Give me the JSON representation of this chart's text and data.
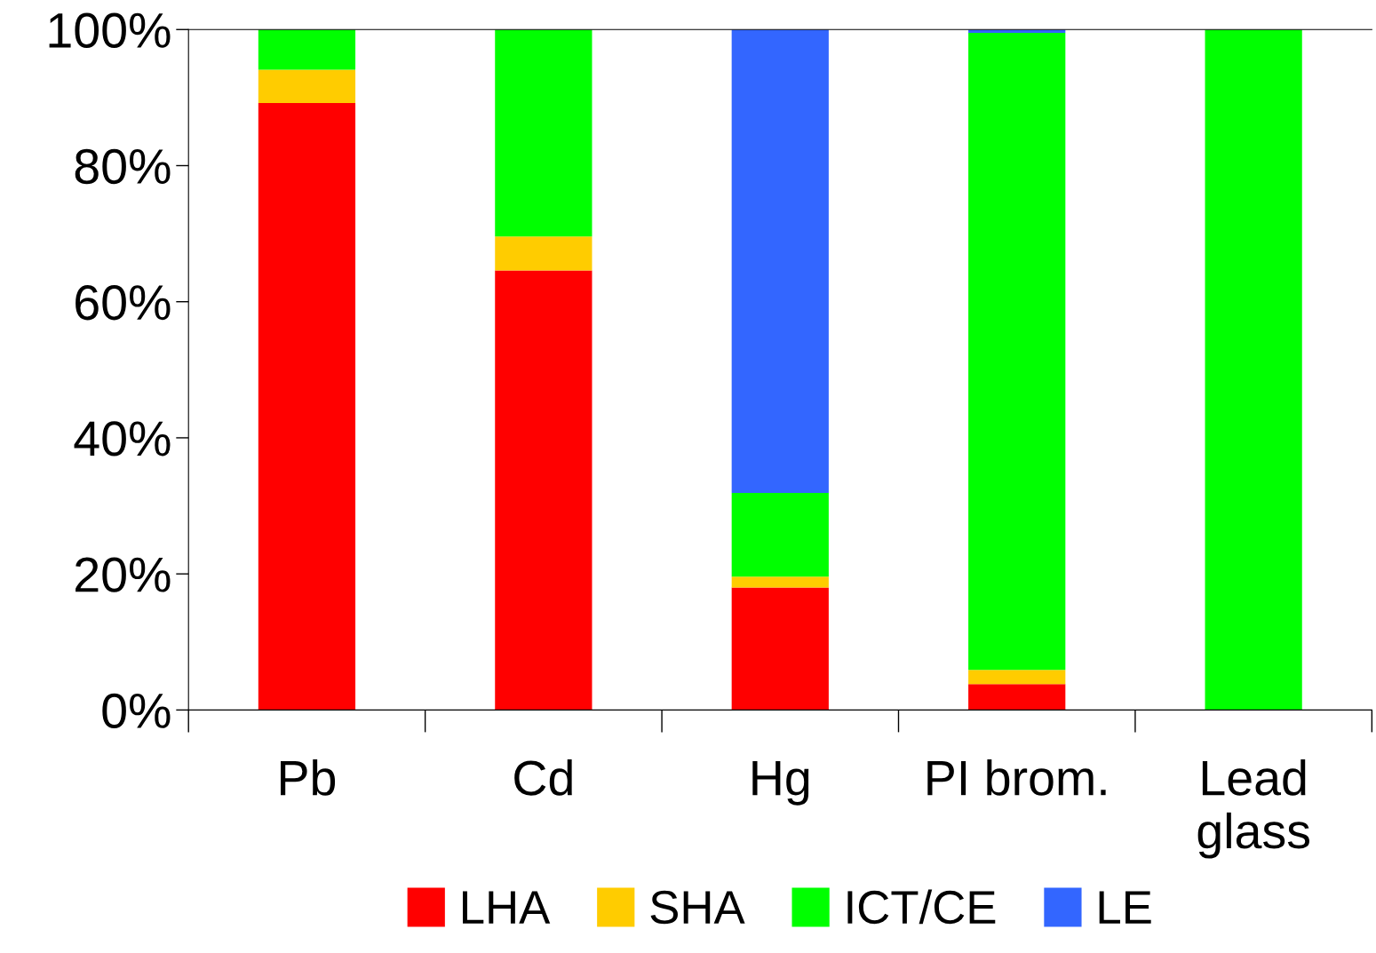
{
  "chart_data": {
    "type": "bar",
    "stacked": true,
    "categories": [
      "Pb",
      "Cd",
      "Hg",
      "PI brom.",
      "Lead\nglass"
    ],
    "series": [
      {
        "name": "LHA",
        "color": "#ff0000",
        "values": [
          89.2,
          64.6,
          18.0,
          3.8,
          0
        ]
      },
      {
        "name": "SHA",
        "color": "#ffcc00",
        "values": [
          4.9,
          5.0,
          1.6,
          2.1,
          0
        ]
      },
      {
        "name": "ICT/CE",
        "color": "#00ff00",
        "values": [
          5.9,
          30.4,
          12.3,
          93.6,
          100
        ]
      },
      {
        "name": "LE",
        "color": "#3366ff",
        "values": [
          0,
          0,
          68.1,
          0.5,
          0
        ]
      }
    ],
    "ylim": [
      0,
      100
    ],
    "yticks": [
      {
        "value": 0,
        "label": "0%"
      },
      {
        "value": 20,
        "label": "20%"
      },
      {
        "value": 40,
        "label": "40%"
      },
      {
        "value": 60,
        "label": "60%"
      },
      {
        "value": 80,
        "label": "80%"
      },
      {
        "value": 100,
        "label": "100%"
      }
    ],
    "grid": false,
    "legend": "bottom"
  }
}
